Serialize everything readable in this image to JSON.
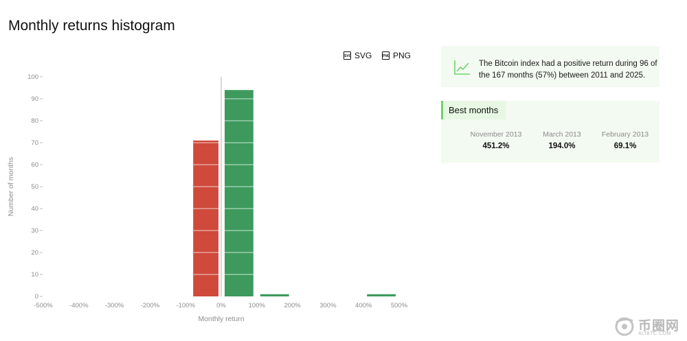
{
  "page_title": "Monthly returns histogram",
  "export": {
    "svg_label": "SVG",
    "png_label": "PNG",
    "svg_icon": "svg-file-icon",
    "png_icon": "png-file-icon"
  },
  "info": {
    "icon": "trend-line-icon",
    "text": "The Bitcoin index had a positive return during 96 of the 167 months (57%) between 2011 and 2025."
  },
  "best_months": {
    "title": "Best months",
    "items": [
      {
        "label": "November 2013",
        "value": "451.2%"
      },
      {
        "label": "March 2013",
        "value": "194.0%"
      },
      {
        "label": "February 2013",
        "value": "69.1%"
      }
    ]
  },
  "watermark": {
    "text": "币圈网",
    "subtext": "ALIBTC.COM"
  },
  "colors": {
    "negative": "#cf4a3b",
    "positive": "#3d9a5c",
    "accent": "#6fd36a",
    "card_bg": "#f3faf1"
  },
  "chart_data": {
    "type": "bar",
    "xlabel": "Monthly return",
    "ylabel": "Number of months",
    "x_ticks": [
      "-500%",
      "-400%",
      "-300%",
      "-200%",
      "-100%",
      "0%",
      "100%",
      "200%",
      "300%",
      "400%",
      "500%"
    ],
    "y_ticks": [
      "0",
      "10",
      "20",
      "30",
      "40",
      "50",
      "60",
      "70",
      "80",
      "90",
      "100"
    ],
    "xlim": [
      -500,
      500
    ],
    "ylim": [
      0,
      100
    ],
    "grid": false,
    "bins": [
      {
        "from": -100,
        "to": 0,
        "count": 71
      },
      {
        "from": 0,
        "to": 100,
        "count": 94
      },
      {
        "from": 100,
        "to": 200,
        "count": 1
      },
      {
        "from": 400,
        "to": 500,
        "count": 1
      }
    ]
  }
}
